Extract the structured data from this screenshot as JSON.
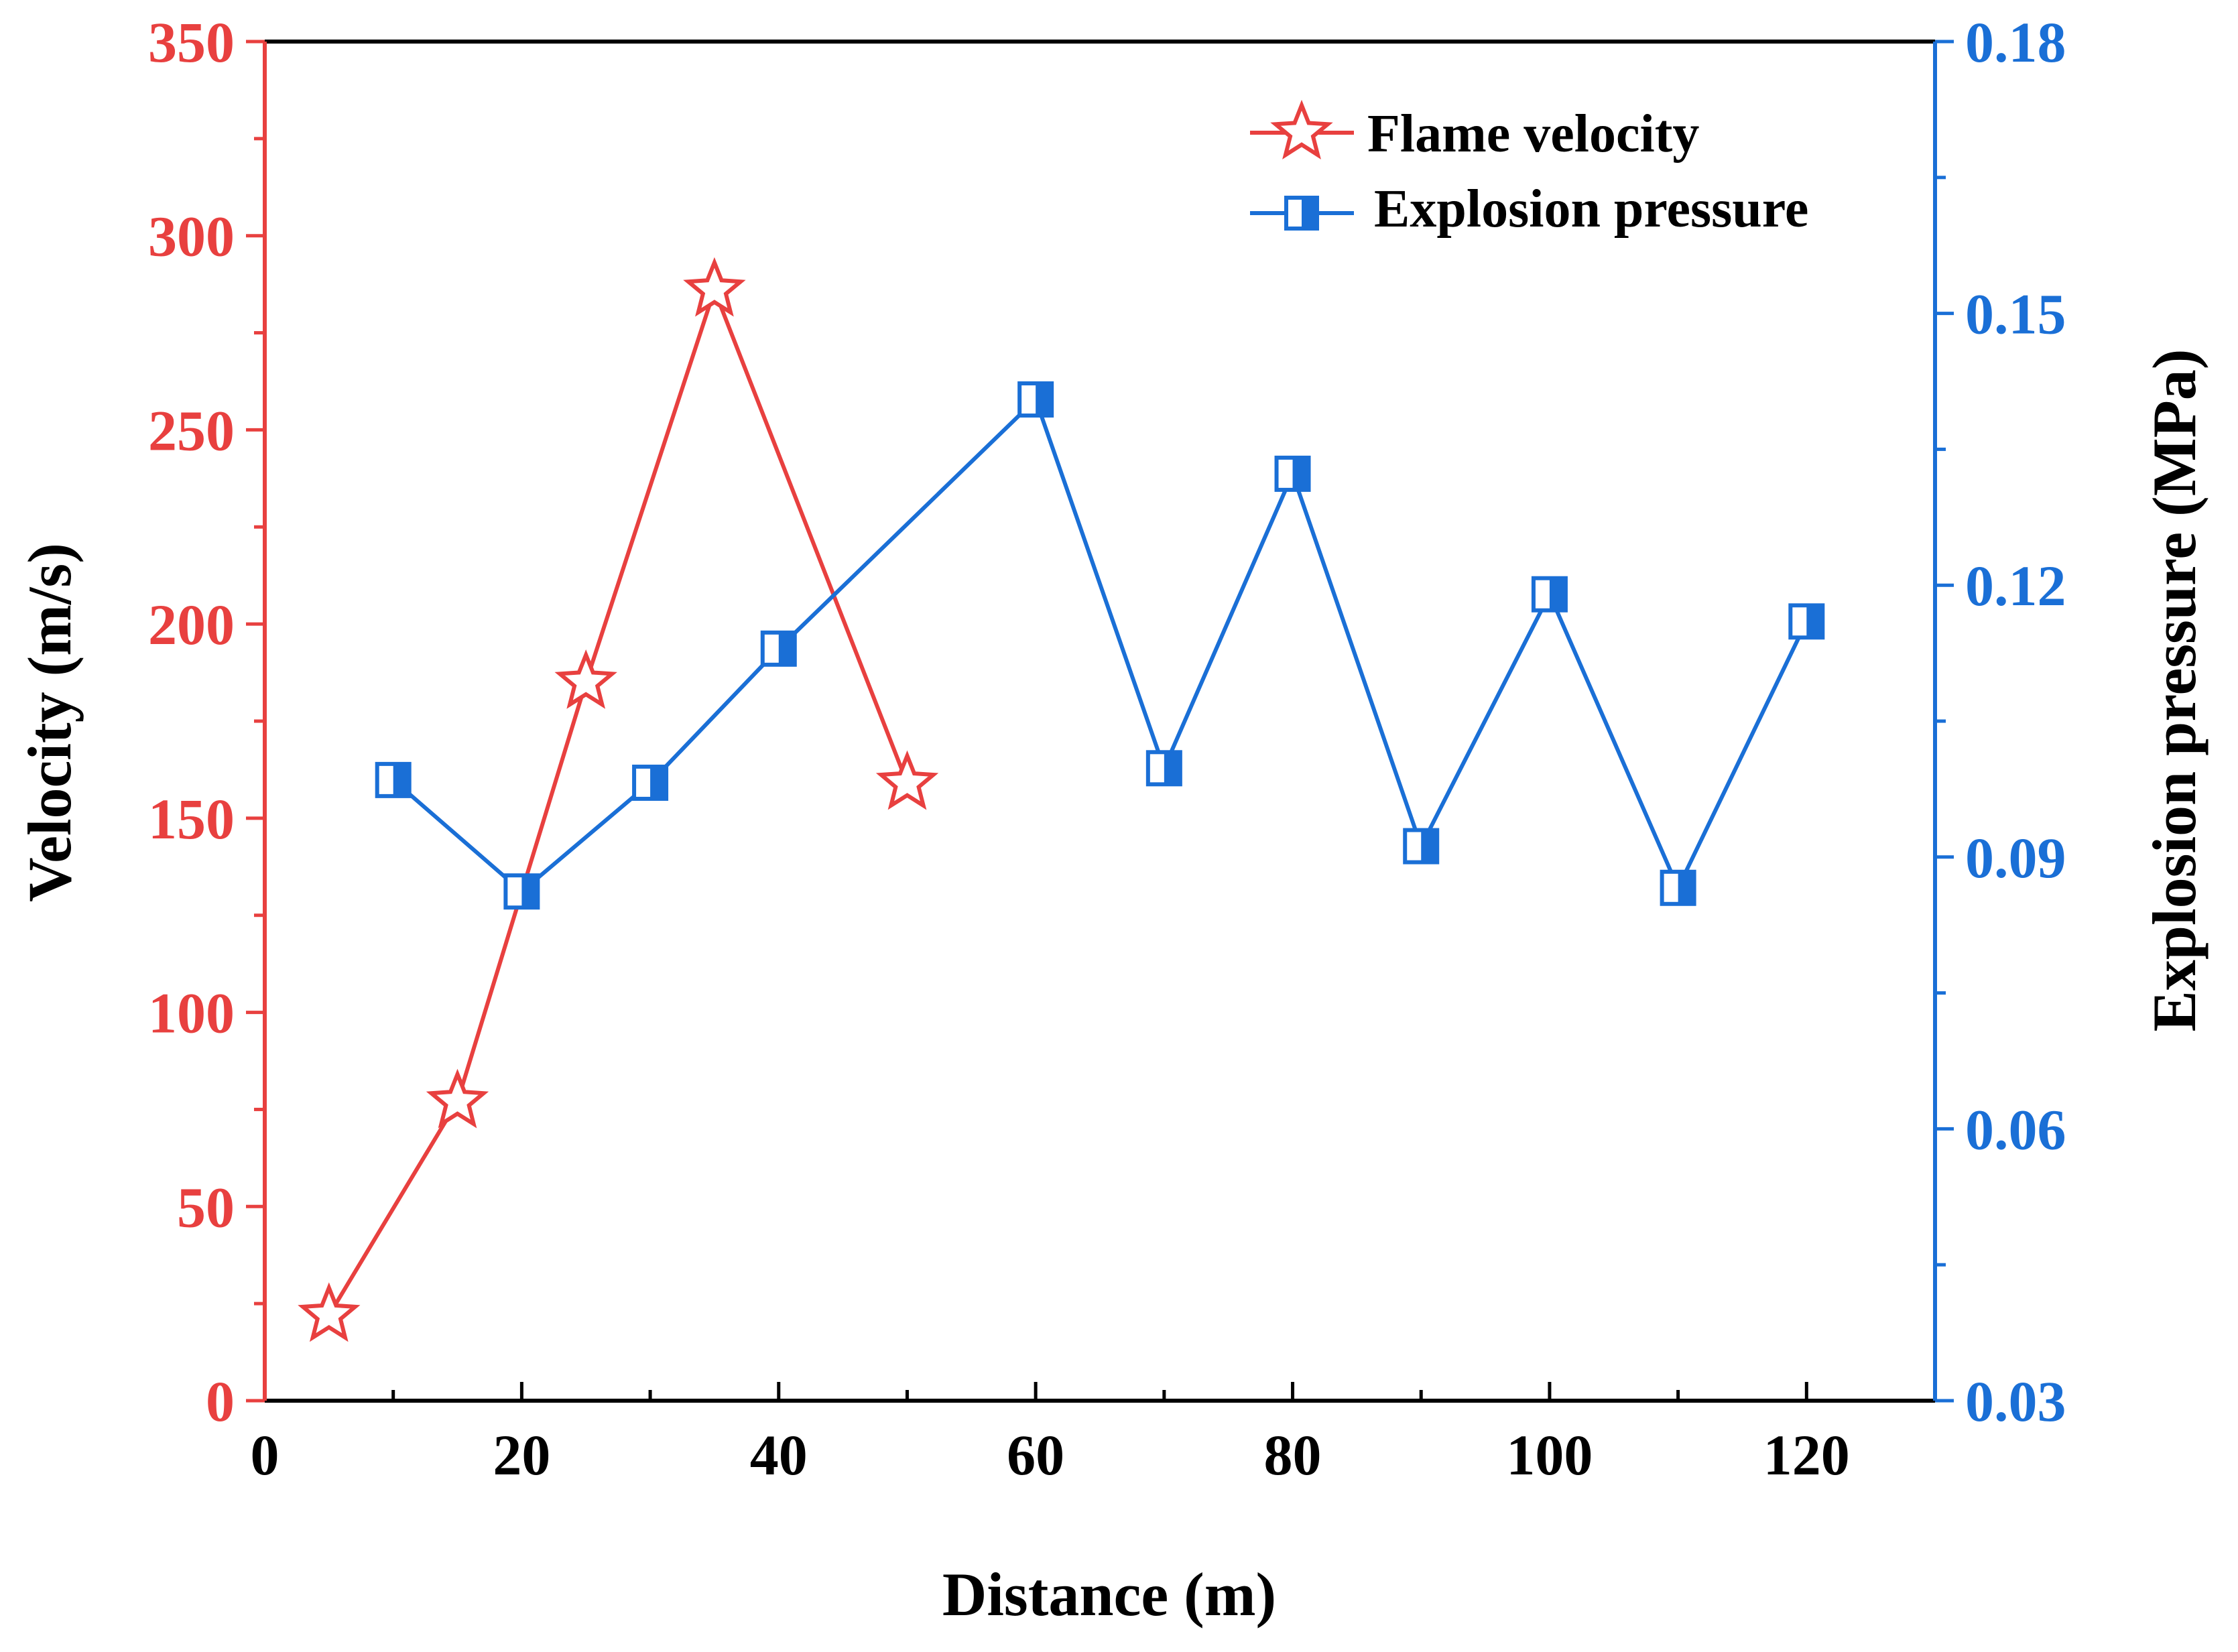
{
  "chart_data": {
    "type": "line",
    "title": "",
    "xlabel": "Distance (m)",
    "ylabel": "Velocity (m/s)",
    "y2label": "Explosion pressure (MPa)",
    "xlim": [
      0,
      130
    ],
    "ylim": [
      0,
      350
    ],
    "y2lim": [
      0.03,
      0.18
    ],
    "x_ticks": [
      0,
      20,
      40,
      60,
      80,
      100,
      120
    ],
    "y_ticks": [
      0,
      50,
      100,
      150,
      200,
      250,
      300,
      350
    ],
    "y2_ticks": [
      0.03,
      0.06,
      0.09,
      0.12,
      0.15,
      0.18
    ],
    "x_tick_labels": [
      "0",
      "20",
      "40",
      "60",
      "80",
      "100",
      "120"
    ],
    "y_tick_labels": [
      "0",
      "50",
      "100",
      "150",
      "200",
      "250",
      "300",
      "350"
    ],
    "y2_tick_labels": [
      "0.03",
      "0.06",
      "0.09",
      "0.12",
      "0.15",
      "0.18"
    ],
    "legend_position": "top-right",
    "grid": false,
    "colors": {
      "velocity": "#e8403f",
      "pressure": "#1a6fd6",
      "frame": "#000000"
    },
    "series": [
      {
        "name": "Flame velocity",
        "axis": "left",
        "marker": "star-open",
        "x": [
          5,
          15,
          25,
          35,
          50
        ],
        "values": [
          22,
          77,
          185,
          286,
          159
        ]
      },
      {
        "name": "Explosion pressure",
        "axis": "right",
        "marker": "square-half",
        "x": [
          10,
          20,
          30,
          40,
          60,
          70,
          80,
          90,
          100,
          110,
          120
        ],
        "values": [
          0.0985,
          0.0862,
          0.0982,
          0.113,
          0.1405,
          0.0998,
          0.1323,
          0.0912,
          0.119,
          0.0866,
          0.116
        ]
      }
    ]
  }
}
